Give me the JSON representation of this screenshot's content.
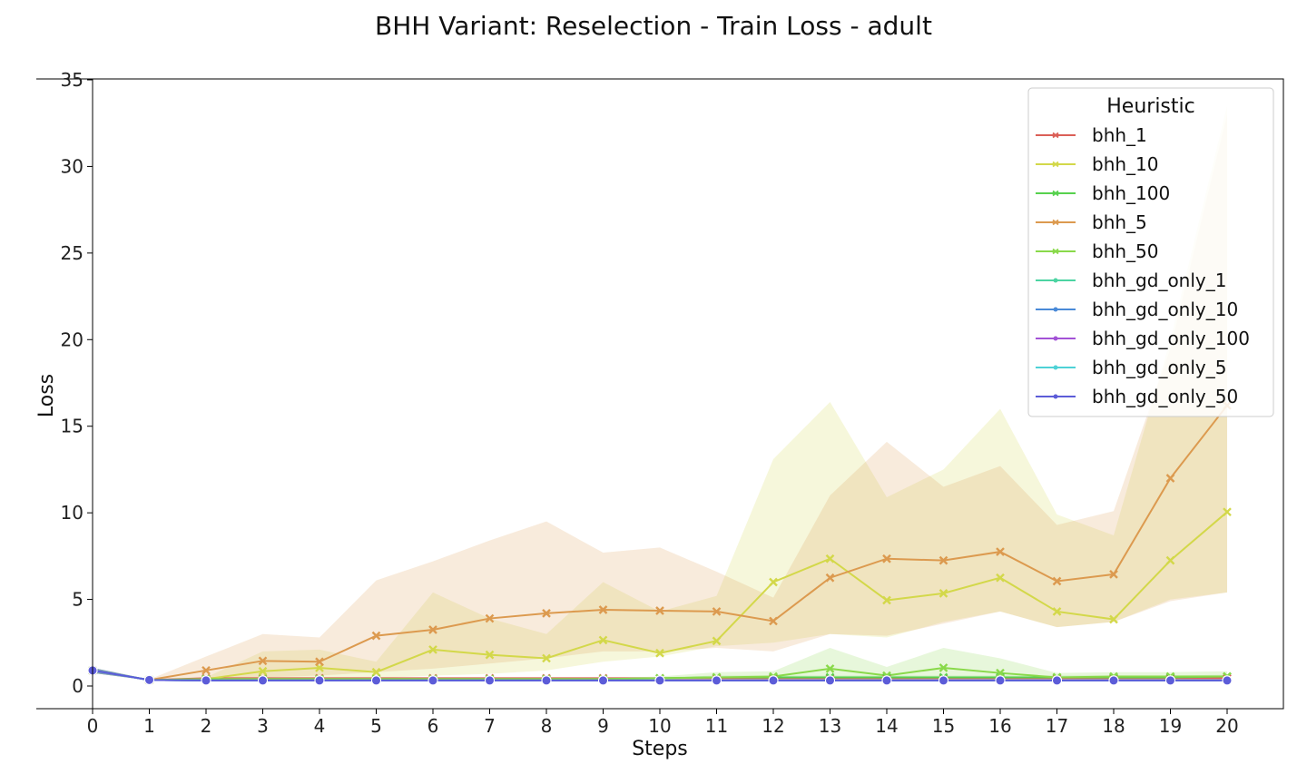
{
  "chart_data": {
    "type": "line",
    "title": "BHH Variant: Reselection - Train Loss - adult",
    "xlabel": "Steps",
    "ylabel": "Loss",
    "x": [
      0,
      1,
      2,
      3,
      4,
      5,
      6,
      7,
      8,
      9,
      10,
      11,
      12,
      13,
      14,
      15,
      16,
      17,
      18,
      19,
      20
    ],
    "xlim": [
      0,
      20
    ],
    "ylim": [
      -1.3,
      35
    ],
    "yticks": [
      0,
      5,
      10,
      15,
      20,
      25,
      30,
      35
    ],
    "grid": false,
    "legend": {
      "title": "Heuristic",
      "placement": "top-right"
    },
    "series": [
      {
        "name": "bhh_1",
        "color": "#db5f57",
        "marker": "x",
        "values": [
          0.9,
          0.35,
          0.45,
          0.45,
          0.45,
          0.45,
          0.45,
          0.45,
          0.45,
          0.45,
          0.45,
          0.45,
          0.45,
          0.45,
          0.45,
          0.45,
          0.45,
          0.45,
          0.45,
          0.45,
          0.45
        ],
        "band_low": [
          0.75,
          0.33,
          0.42,
          0.42,
          0.42,
          0.42,
          0.42,
          0.42,
          0.42,
          0.42,
          0.42,
          0.42,
          0.42,
          0.42,
          0.42,
          0.42,
          0.42,
          0.42,
          0.42,
          0.42,
          0.42
        ],
        "band_high": [
          1.05,
          0.38,
          0.5,
          0.5,
          0.5,
          0.5,
          0.5,
          0.5,
          0.5,
          0.5,
          0.5,
          0.5,
          0.5,
          0.5,
          0.5,
          0.5,
          0.5,
          0.5,
          0.5,
          0.5,
          0.5
        ]
      },
      {
        "name": "bhh_10",
        "color": "#d3d84a",
        "marker": "x",
        "values": [
          0.9,
          0.35,
          0.4,
          0.85,
          1.05,
          0.8,
          2.1,
          1.8,
          1.6,
          2.65,
          1.9,
          2.6,
          6.0,
          7.35,
          4.95,
          5.35,
          6.25,
          4.3,
          3.85,
          7.25,
          10.05
        ],
        "band_low": [
          0.75,
          0.33,
          0.35,
          0.4,
          0.45,
          0.45,
          0.6,
          0.7,
          0.9,
          1.4,
          1.7,
          2.3,
          2.5,
          3.0,
          2.8,
          3.7,
          4.3,
          3.4,
          3.7,
          5.0,
          5.4
        ],
        "band_high": [
          1.05,
          0.38,
          0.5,
          2.0,
          2.1,
          1.4,
          5.4,
          3.9,
          3.0,
          6.0,
          4.3,
          5.2,
          13.1,
          16.4,
          10.9,
          12.5,
          16.0,
          9.9,
          8.7,
          20.0,
          33.5
        ]
      },
      {
        "name": "bhh_100",
        "color": "#57d14e",
        "marker": "x",
        "values": [
          0.9,
          0.35,
          0.4,
          0.4,
          0.4,
          0.4,
          0.4,
          0.4,
          0.4,
          0.4,
          0.45,
          0.5,
          0.5,
          0.5,
          0.5,
          0.5,
          0.5,
          0.5,
          0.5,
          0.5,
          0.55
        ],
        "band_low": [
          0.75,
          0.33,
          0.35,
          0.35,
          0.35,
          0.35,
          0.35,
          0.35,
          0.35,
          0.35,
          0.4,
          0.42,
          0.42,
          0.42,
          0.42,
          0.42,
          0.42,
          0.42,
          0.42,
          0.42,
          0.45
        ],
        "band_high": [
          1.05,
          0.38,
          0.45,
          0.45,
          0.45,
          0.45,
          0.45,
          0.45,
          0.45,
          0.45,
          0.5,
          0.6,
          0.6,
          0.6,
          0.6,
          0.6,
          0.6,
          0.6,
          0.6,
          0.6,
          0.65
        ]
      },
      {
        "name": "bhh_5",
        "color": "#dc9a4f",
        "marker": "x",
        "values": [
          0.9,
          0.35,
          0.9,
          1.45,
          1.4,
          2.9,
          3.25,
          3.9,
          4.2,
          4.4,
          4.35,
          4.3,
          3.75,
          6.25,
          7.35,
          7.25,
          7.75,
          6.05,
          6.45,
          12.0,
          16.2
        ],
        "band_low": [
          0.75,
          0.33,
          0.4,
          0.5,
          0.6,
          0.8,
          1.0,
          1.3,
          1.6,
          2.0,
          2.0,
          2.2,
          2.0,
          3.0,
          2.9,
          3.6,
          4.3,
          3.4,
          3.7,
          4.9,
          5.4
        ],
        "band_high": [
          1.05,
          0.38,
          1.7,
          3.0,
          2.8,
          6.1,
          7.2,
          8.4,
          9.5,
          7.7,
          8.0,
          6.6,
          5.1,
          11.0,
          14.1,
          11.5,
          12.7,
          9.3,
          10.1,
          19.5,
          33.0
        ]
      },
      {
        "name": "bhh_50",
        "color": "#89d94a",
        "marker": "x",
        "values": [
          0.9,
          0.35,
          0.4,
          0.4,
          0.4,
          0.4,
          0.4,
          0.4,
          0.4,
          0.4,
          0.45,
          0.5,
          0.55,
          1.0,
          0.6,
          1.05,
          0.75,
          0.5,
          0.55,
          0.55,
          0.55
        ],
        "band_low": [
          0.75,
          0.33,
          0.35,
          0.35,
          0.35,
          0.35,
          0.35,
          0.35,
          0.35,
          0.35,
          0.4,
          0.42,
          0.45,
          0.4,
          0.35,
          0.45,
          0.4,
          0.42,
          0.45,
          0.45,
          0.45
        ],
        "band_high": [
          1.05,
          0.38,
          0.45,
          0.45,
          0.45,
          0.45,
          0.45,
          0.45,
          0.45,
          0.45,
          0.55,
          0.8,
          0.85,
          2.2,
          1.1,
          2.2,
          1.6,
          0.75,
          0.8,
          0.8,
          0.85
        ]
      },
      {
        "name": "bhh_gd_only_1",
        "color": "#4cd4a2",
        "marker": "o",
        "values": [
          0.9,
          0.35,
          0.32,
          0.32,
          0.32,
          0.32,
          0.32,
          0.32,
          0.32,
          0.32,
          0.32,
          0.32,
          0.32,
          0.32,
          0.32,
          0.32,
          0.32,
          0.32,
          0.32,
          0.32,
          0.32
        ],
        "band_low": [
          0.75,
          0.33,
          0.3,
          0.3,
          0.3,
          0.3,
          0.3,
          0.3,
          0.3,
          0.3,
          0.3,
          0.3,
          0.3,
          0.3,
          0.3,
          0.3,
          0.3,
          0.3,
          0.3,
          0.3,
          0.3
        ],
        "band_high": [
          1.05,
          0.38,
          0.34,
          0.34,
          0.34,
          0.34,
          0.34,
          0.34,
          0.34,
          0.34,
          0.34,
          0.34,
          0.34,
          0.34,
          0.34,
          0.34,
          0.34,
          0.34,
          0.34,
          0.34,
          0.34
        ]
      },
      {
        "name": "bhh_gd_only_10",
        "color": "#4a8ad8",
        "marker": "o",
        "values": [
          0.9,
          0.35,
          0.32,
          0.32,
          0.32,
          0.32,
          0.32,
          0.32,
          0.32,
          0.32,
          0.32,
          0.32,
          0.32,
          0.32,
          0.32,
          0.32,
          0.32,
          0.32,
          0.32,
          0.32,
          0.32
        ],
        "band_low": [
          0.75,
          0.33,
          0.3,
          0.3,
          0.3,
          0.3,
          0.3,
          0.3,
          0.3,
          0.3,
          0.3,
          0.3,
          0.3,
          0.3,
          0.3,
          0.3,
          0.3,
          0.3,
          0.3,
          0.3,
          0.3
        ],
        "band_high": [
          1.05,
          0.38,
          0.34,
          0.34,
          0.34,
          0.34,
          0.34,
          0.34,
          0.34,
          0.34,
          0.34,
          0.34,
          0.34,
          0.34,
          0.34,
          0.34,
          0.34,
          0.34,
          0.34,
          0.34,
          0.34
        ]
      },
      {
        "name": "bhh_gd_only_100",
        "color": "#a352d6",
        "marker": "o",
        "values": [
          0.9,
          0.35,
          0.32,
          0.32,
          0.32,
          0.32,
          0.32,
          0.32,
          0.32,
          0.32,
          0.32,
          0.32,
          0.32,
          0.32,
          0.32,
          0.32,
          0.32,
          0.32,
          0.32,
          0.32,
          0.32
        ],
        "band_low": [
          0.75,
          0.33,
          0.3,
          0.3,
          0.3,
          0.3,
          0.3,
          0.3,
          0.3,
          0.3,
          0.3,
          0.3,
          0.3,
          0.3,
          0.3,
          0.3,
          0.3,
          0.3,
          0.3,
          0.3,
          0.3
        ],
        "band_high": [
          1.05,
          0.38,
          0.34,
          0.34,
          0.34,
          0.34,
          0.34,
          0.34,
          0.34,
          0.34,
          0.34,
          0.34,
          0.34,
          0.34,
          0.34,
          0.34,
          0.34,
          0.34,
          0.34,
          0.34,
          0.34
        ]
      },
      {
        "name": "bhh_gd_only_5",
        "color": "#4ed2d6",
        "marker": "o",
        "values": [
          0.9,
          0.35,
          0.32,
          0.32,
          0.32,
          0.32,
          0.32,
          0.32,
          0.32,
          0.32,
          0.32,
          0.32,
          0.32,
          0.32,
          0.32,
          0.32,
          0.32,
          0.32,
          0.32,
          0.32,
          0.32
        ],
        "band_low": [
          0.75,
          0.33,
          0.3,
          0.3,
          0.3,
          0.3,
          0.3,
          0.3,
          0.3,
          0.3,
          0.3,
          0.3,
          0.3,
          0.3,
          0.3,
          0.3,
          0.3,
          0.3,
          0.3,
          0.3,
          0.3
        ],
        "band_high": [
          1.05,
          0.38,
          0.34,
          0.34,
          0.34,
          0.34,
          0.34,
          0.34,
          0.34,
          0.34,
          0.34,
          0.34,
          0.34,
          0.34,
          0.34,
          0.34,
          0.34,
          0.34,
          0.34,
          0.34,
          0.34
        ]
      },
      {
        "name": "bhh_gd_only_50",
        "color": "#5c5cd8",
        "marker": "o",
        "values": [
          0.9,
          0.35,
          0.32,
          0.32,
          0.32,
          0.32,
          0.32,
          0.32,
          0.32,
          0.32,
          0.32,
          0.32,
          0.32,
          0.32,
          0.32,
          0.32,
          0.32,
          0.32,
          0.32,
          0.32,
          0.32
        ],
        "band_low": [
          0.75,
          0.33,
          0.3,
          0.3,
          0.3,
          0.3,
          0.3,
          0.3,
          0.3,
          0.3,
          0.3,
          0.3,
          0.3,
          0.3,
          0.3,
          0.3,
          0.3,
          0.3,
          0.3,
          0.3,
          0.3
        ],
        "band_high": [
          1.05,
          0.38,
          0.34,
          0.34,
          0.34,
          0.34,
          0.34,
          0.34,
          0.34,
          0.34,
          0.34,
          0.34,
          0.34,
          0.34,
          0.34,
          0.34,
          0.34,
          0.34,
          0.34,
          0.34,
          0.34
        ]
      }
    ]
  }
}
